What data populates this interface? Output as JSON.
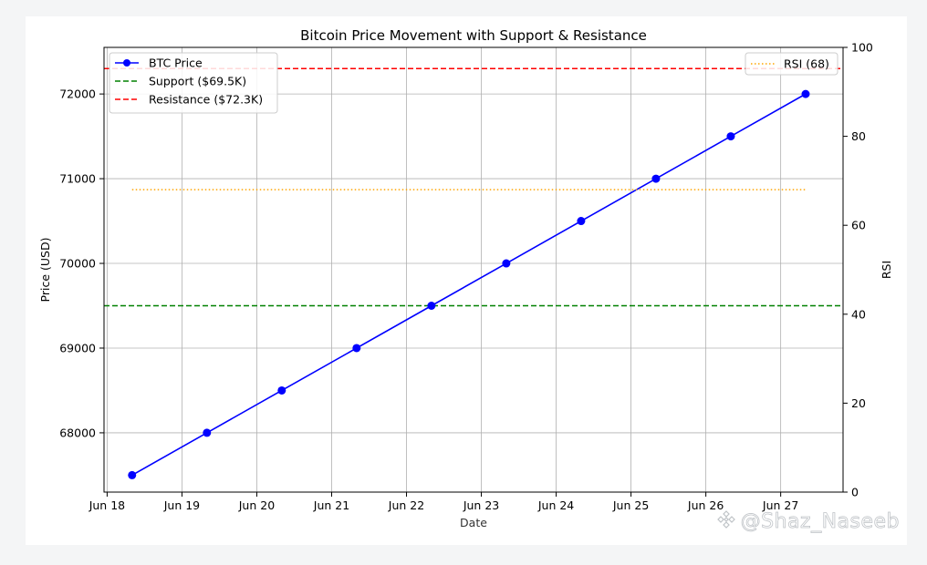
{
  "chart_data": {
    "type": "line",
    "title": "Bitcoin Price Movement with Support & Resistance",
    "xlabel": "Date",
    "ylabel": "Price (USD)",
    "y2label": "RSI",
    "x_ticks": [
      "Jun 18",
      "Jun 19",
      "Jun 20",
      "Jun 21",
      "Jun 22",
      "Jun 23",
      "Jun 24",
      "Jun 25",
      "Jun 26",
      "Jun 27"
    ],
    "x_tick_dates": [
      "2024-06-18",
      "2024-06-19",
      "2024-06-20",
      "2024-06-21",
      "2024-06-22",
      "2024-06-23",
      "2024-06-24",
      "2024-06-25",
      "2024-06-26",
      "2024-06-27"
    ],
    "xlim": [
      "2024-06-17 23:00",
      "2024-06-27 20:00"
    ],
    "y_ticks": [
      68000,
      69000,
      70000,
      71000,
      72000
    ],
    "ylim": [
      67300,
      72550
    ],
    "y2_ticks": [
      0,
      20,
      40,
      60,
      80,
      100
    ],
    "y2lim": [
      0,
      100
    ],
    "grid": true,
    "series": [
      {
        "name": "BTC Price",
        "axis": "left",
        "style": "solid-marker",
        "color": "#0000ff",
        "x": [
          "2024-06-18 08:00",
          "2024-06-19 08:00",
          "2024-06-20 08:00",
          "2024-06-21 08:00",
          "2024-06-22 08:00",
          "2024-06-23 08:00",
          "2024-06-24 08:00",
          "2024-06-25 08:00",
          "2024-06-26 08:00",
          "2024-06-27 08:00"
        ],
        "y": [
          67500,
          68000,
          68500,
          69000,
          69500,
          70000,
          70500,
          71000,
          71500,
          72000
        ]
      },
      {
        "name": "Support ($69.5K)",
        "axis": "left",
        "style": "hline-dashed",
        "color": "#008000",
        "value": 69500
      },
      {
        "name": "Resistance ($72.3K)",
        "axis": "left",
        "style": "hline-dashed",
        "color": "#ff0000",
        "value": 72300
      },
      {
        "name": "RSI (68)",
        "axis": "right",
        "style": "dotted",
        "color": "#ffa500",
        "x": [
          "2024-06-18 08:00",
          "2024-06-27 08:00"
        ],
        "y": [
          68,
          68
        ]
      }
    ],
    "legend_left_position": "upper-left",
    "legend_right_position": "upper-right"
  },
  "watermark": {
    "text": "@Shaz_Naseeb",
    "icon": "binance-logo-icon"
  }
}
